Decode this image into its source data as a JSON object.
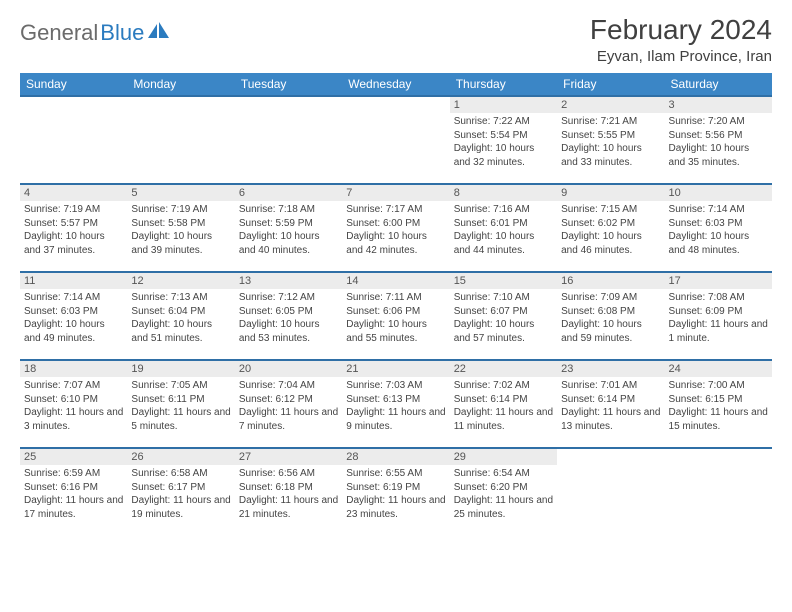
{
  "logo": {
    "gray": "General",
    "blue": "Blue"
  },
  "title": "February 2024",
  "location": "Eyvan, Ilam Province, Iran",
  "colors": {
    "header_bg": "#3b86c6",
    "header_text": "#ffffff",
    "week_border": "#2f6fa6",
    "daynum_bg": "#ececec",
    "body_text": "#444444",
    "logo_gray": "#6b6b6b",
    "logo_blue": "#2b7bbf"
  },
  "weekdays": [
    "Sunday",
    "Monday",
    "Tuesday",
    "Wednesday",
    "Thursday",
    "Friday",
    "Saturday"
  ],
  "weeks": [
    [
      null,
      null,
      null,
      null,
      {
        "n": "1",
        "sr": "7:22 AM",
        "ss": "5:54 PM",
        "dl": "10 hours and 32 minutes."
      },
      {
        "n": "2",
        "sr": "7:21 AM",
        "ss": "5:55 PM",
        "dl": "10 hours and 33 minutes."
      },
      {
        "n": "3",
        "sr": "7:20 AM",
        "ss": "5:56 PM",
        "dl": "10 hours and 35 minutes."
      }
    ],
    [
      {
        "n": "4",
        "sr": "7:19 AM",
        "ss": "5:57 PM",
        "dl": "10 hours and 37 minutes."
      },
      {
        "n": "5",
        "sr": "7:19 AM",
        "ss": "5:58 PM",
        "dl": "10 hours and 39 minutes."
      },
      {
        "n": "6",
        "sr": "7:18 AM",
        "ss": "5:59 PM",
        "dl": "10 hours and 40 minutes."
      },
      {
        "n": "7",
        "sr": "7:17 AM",
        "ss": "6:00 PM",
        "dl": "10 hours and 42 minutes."
      },
      {
        "n": "8",
        "sr": "7:16 AM",
        "ss": "6:01 PM",
        "dl": "10 hours and 44 minutes."
      },
      {
        "n": "9",
        "sr": "7:15 AM",
        "ss": "6:02 PM",
        "dl": "10 hours and 46 minutes."
      },
      {
        "n": "10",
        "sr": "7:14 AM",
        "ss": "6:03 PM",
        "dl": "10 hours and 48 minutes."
      }
    ],
    [
      {
        "n": "11",
        "sr": "7:14 AM",
        "ss": "6:03 PM",
        "dl": "10 hours and 49 minutes."
      },
      {
        "n": "12",
        "sr": "7:13 AM",
        "ss": "6:04 PM",
        "dl": "10 hours and 51 minutes."
      },
      {
        "n": "13",
        "sr": "7:12 AM",
        "ss": "6:05 PM",
        "dl": "10 hours and 53 minutes."
      },
      {
        "n": "14",
        "sr": "7:11 AM",
        "ss": "6:06 PM",
        "dl": "10 hours and 55 minutes."
      },
      {
        "n": "15",
        "sr": "7:10 AM",
        "ss": "6:07 PM",
        "dl": "10 hours and 57 minutes."
      },
      {
        "n": "16",
        "sr": "7:09 AM",
        "ss": "6:08 PM",
        "dl": "10 hours and 59 minutes."
      },
      {
        "n": "17",
        "sr": "7:08 AM",
        "ss": "6:09 PM",
        "dl": "11 hours and 1 minute."
      }
    ],
    [
      {
        "n": "18",
        "sr": "7:07 AM",
        "ss": "6:10 PM",
        "dl": "11 hours and 3 minutes."
      },
      {
        "n": "19",
        "sr": "7:05 AM",
        "ss": "6:11 PM",
        "dl": "11 hours and 5 minutes."
      },
      {
        "n": "20",
        "sr": "7:04 AM",
        "ss": "6:12 PM",
        "dl": "11 hours and 7 minutes."
      },
      {
        "n": "21",
        "sr": "7:03 AM",
        "ss": "6:13 PM",
        "dl": "11 hours and 9 minutes."
      },
      {
        "n": "22",
        "sr": "7:02 AM",
        "ss": "6:14 PM",
        "dl": "11 hours and 11 minutes."
      },
      {
        "n": "23",
        "sr": "7:01 AM",
        "ss": "6:14 PM",
        "dl": "11 hours and 13 minutes."
      },
      {
        "n": "24",
        "sr": "7:00 AM",
        "ss": "6:15 PM",
        "dl": "11 hours and 15 minutes."
      }
    ],
    [
      {
        "n": "25",
        "sr": "6:59 AM",
        "ss": "6:16 PM",
        "dl": "11 hours and 17 minutes."
      },
      {
        "n": "26",
        "sr": "6:58 AM",
        "ss": "6:17 PM",
        "dl": "11 hours and 19 minutes."
      },
      {
        "n": "27",
        "sr": "6:56 AM",
        "ss": "6:18 PM",
        "dl": "11 hours and 21 minutes."
      },
      {
        "n": "28",
        "sr": "6:55 AM",
        "ss": "6:19 PM",
        "dl": "11 hours and 23 minutes."
      },
      {
        "n": "29",
        "sr": "6:54 AM",
        "ss": "6:20 PM",
        "dl": "11 hours and 25 minutes."
      },
      null,
      null
    ]
  ],
  "labels": {
    "sunrise": "Sunrise:",
    "sunset": "Sunset:",
    "daylight": "Daylight:"
  }
}
